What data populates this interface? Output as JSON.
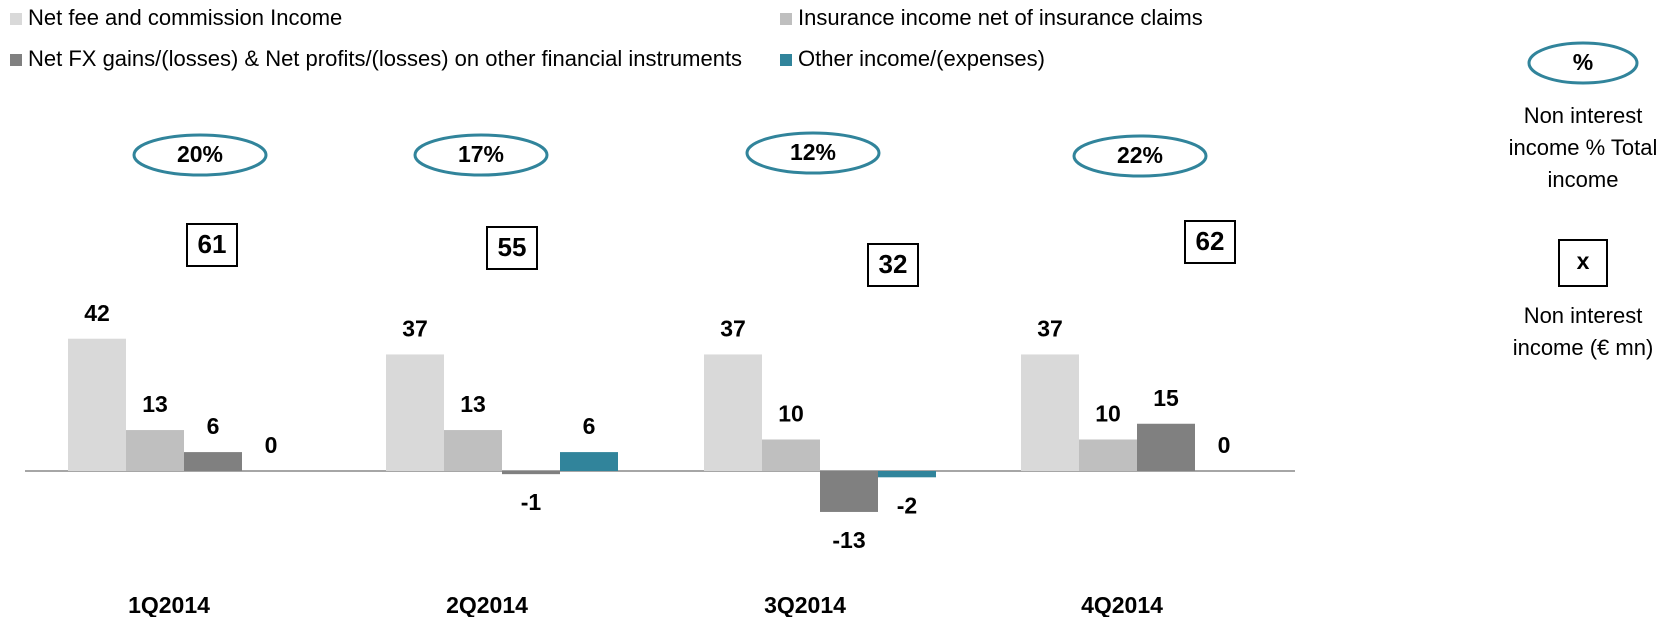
{
  "chart_data": {
    "type": "bar",
    "categories": [
      "1Q2014",
      "2Q2014",
      "3Q2014",
      "4Q2014"
    ],
    "series": [
      {
        "name": "Net fee and commission Income",
        "color": "#d9d9d9",
        "values": [
          42,
          37,
          37,
          37
        ]
      },
      {
        "name": "Insurance income net of insurance claims",
        "color": "#bfbfbf",
        "values": [
          13,
          13,
          10,
          10
        ]
      },
      {
        "name": "Net FX gains/(losses) & Net profits/(losses) on other financial instruments",
        "color": "#808080",
        "values": [
          6,
          -1,
          -13,
          15
        ]
      },
      {
        "name": "Other income/(expenses)",
        "color": "#31849b",
        "values": [
          0,
          6,
          -2,
          0
        ]
      }
    ],
    "ylim": [
      -20,
      50
    ],
    "percent_labels": [
      "20%",
      "17%",
      "12%",
      "22%"
    ],
    "totals": [
      61,
      55,
      32,
      62
    ],
    "key": {
      "percent": {
        "symbol": "%",
        "lines": [
          "Non interest",
          "income % Total",
          "income"
        ]
      },
      "total": {
        "symbol": "x",
        "lines": [
          "Non interest",
          "income (€ mn)"
        ]
      }
    }
  }
}
